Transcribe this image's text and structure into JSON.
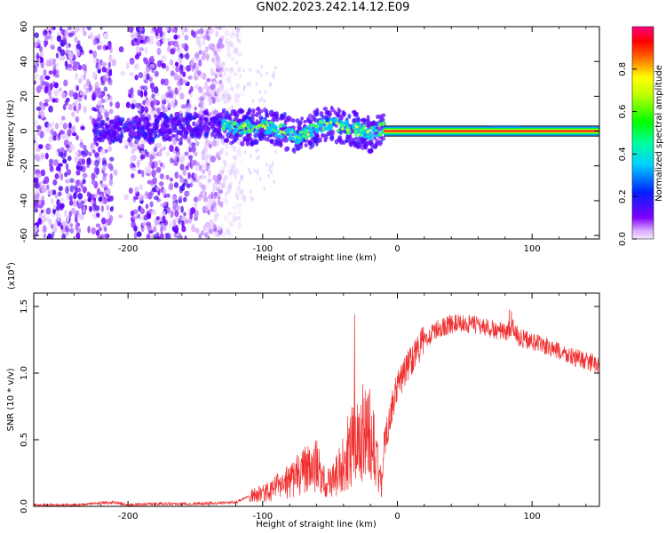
{
  "title": "GN02.2023.242.14.12.E09",
  "chart_data": [
    {
      "type": "heatmap",
      "xlabel": "Height of straight line (km)",
      "ylabel": "Frequency (Hz)",
      "xlim": [
        -270,
        150
      ],
      "ylim": [
        -62,
        60
      ],
      "x_ticks": [
        -200,
        -100,
        0,
        100
      ],
      "x_tick_labels": [
        "-200",
        "-100",
        "0",
        "100"
      ],
      "y_ticks": [
        -60,
        -40,
        -20,
        0,
        20,
        40,
        60
      ],
      "y_tick_labels": [
        "-60",
        "-40",
        "-20",
        "0",
        "20",
        "40",
        "60"
      ],
      "colorbar": {
        "label": "Normalized spectral amplitude",
        "range": [
          0,
          1
        ],
        "ticks": [
          0.0,
          0.2,
          0.4,
          0.6,
          0.8
        ],
        "tick_labels": [
          "0.0",
          "0.2",
          "0.4",
          "0.6",
          "0.8"
        ],
        "colormap": [
          "#f0e0ff",
          "#8000ff",
          "#0020ff",
          "#00ffff",
          "#00ff00",
          "#ffff00",
          "#ff0000",
          "#ff0060"
        ]
      },
      "ridge": [
        {
          "x": -215,
          "f": 0
        },
        {
          "x": -140,
          "f": 4
        },
        {
          "x": -120,
          "f": 2
        },
        {
          "x": -100,
          "f": 3
        },
        {
          "x": -85,
          "f": 0
        },
        {
          "x": -75,
          "f": -4
        },
        {
          "x": -65,
          "f": 0
        },
        {
          "x": -50,
          "f": 5
        },
        {
          "x": -40,
          "f": 2
        },
        {
          "x": -30,
          "f": 1
        },
        {
          "x": -20,
          "f": -2
        },
        {
          "x": -10,
          "f": 2
        },
        {
          "x": 0,
          "f": 0
        },
        {
          "x": 150,
          "f": 0
        }
      ],
      "noise_region_x": [
        -270,
        -130
      ],
      "gap_region_x": [
        -210,
        -200
      ],
      "coherent_line_x": [
        -10,
        150
      ]
    },
    {
      "type": "line",
      "xlabel": "Height of straight line (km)",
      "ylabel": "SNR (10 * v/v)",
      "yscale_label": "(x10",
      "yscale_exponent": "4",
      "yscale_close": ")",
      "color": "#f03030",
      "xlim": [
        -270,
        150
      ],
      "ylim": [
        0,
        1.6
      ],
      "x_ticks": [
        -200,
        -100,
        0,
        100
      ],
      "x_tick_labels": [
        "-200",
        "-100",
        "0",
        "100"
      ],
      "y_ticks": [
        0.0,
        0.5,
        1.0,
        1.5
      ],
      "y_tick_labels": [
        "0.0",
        "0.5",
        "1.0",
        "1.5"
      ],
      "series": [
        {
          "x": [
            -270,
            -240,
            -210,
            -200,
            -180,
            -150,
            -120,
            -110,
            -100,
            -90,
            -80,
            -70,
            -60,
            -55,
            -50,
            -45,
            -40,
            -35,
            -30,
            -25,
            -20,
            -15,
            -12,
            -10,
            -5,
            0,
            10,
            20,
            30,
            40,
            50,
            60,
            70,
            80,
            85,
            90,
            100,
            110,
            120,
            130,
            140,
            150
          ],
          "y": [
            0.01,
            0.01,
            0.03,
            0.01,
            0.02,
            0.02,
            0.03,
            0.08,
            0.1,
            0.15,
            0.2,
            0.28,
            0.32,
            0.2,
            0.18,
            0.25,
            0.38,
            0.45,
            0.52,
            0.6,
            0.55,
            0.4,
            0.15,
            0.45,
            0.7,
            0.9,
            1.1,
            1.25,
            1.33,
            1.37,
            1.37,
            1.36,
            1.33,
            1.3,
            1.35,
            1.27,
            1.24,
            1.2,
            1.16,
            1.12,
            1.09,
            1.06
          ]
        }
      ]
    }
  ]
}
